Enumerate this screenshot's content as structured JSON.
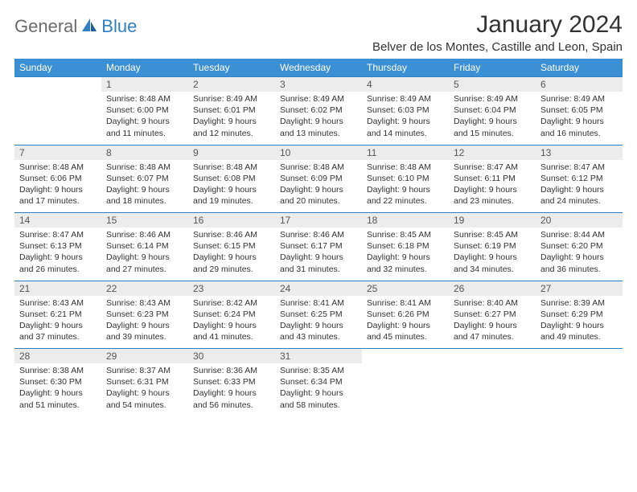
{
  "brand": {
    "general": "General",
    "blue": "Blue"
  },
  "title": "January 2024",
  "location": "Belver de los Montes, Castille and Leon, Spain",
  "colors": {
    "header_bg": "#3b8fd4",
    "header_text": "#ffffff",
    "daynum_bg": "#ececec",
    "border": "#2f7fc2",
    "body_text": "#333333",
    "logo_gray": "#6b6b6b",
    "logo_blue": "#2f7fc2"
  },
  "weekdays": [
    "Sunday",
    "Monday",
    "Tuesday",
    "Wednesday",
    "Thursday",
    "Friday",
    "Saturday"
  ],
  "weeks": [
    [
      null,
      {
        "n": "1",
        "sr": "Sunrise: 8:48 AM",
        "ss": "Sunset: 6:00 PM",
        "dl1": "Daylight: 9 hours",
        "dl2": "and 11 minutes."
      },
      {
        "n": "2",
        "sr": "Sunrise: 8:49 AM",
        "ss": "Sunset: 6:01 PM",
        "dl1": "Daylight: 9 hours",
        "dl2": "and 12 minutes."
      },
      {
        "n": "3",
        "sr": "Sunrise: 8:49 AM",
        "ss": "Sunset: 6:02 PM",
        "dl1": "Daylight: 9 hours",
        "dl2": "and 13 minutes."
      },
      {
        "n": "4",
        "sr": "Sunrise: 8:49 AM",
        "ss": "Sunset: 6:03 PM",
        "dl1": "Daylight: 9 hours",
        "dl2": "and 14 minutes."
      },
      {
        "n": "5",
        "sr": "Sunrise: 8:49 AM",
        "ss": "Sunset: 6:04 PM",
        "dl1": "Daylight: 9 hours",
        "dl2": "and 15 minutes."
      },
      {
        "n": "6",
        "sr": "Sunrise: 8:49 AM",
        "ss": "Sunset: 6:05 PM",
        "dl1": "Daylight: 9 hours",
        "dl2": "and 16 minutes."
      }
    ],
    [
      {
        "n": "7",
        "sr": "Sunrise: 8:48 AM",
        "ss": "Sunset: 6:06 PM",
        "dl1": "Daylight: 9 hours",
        "dl2": "and 17 minutes."
      },
      {
        "n": "8",
        "sr": "Sunrise: 8:48 AM",
        "ss": "Sunset: 6:07 PM",
        "dl1": "Daylight: 9 hours",
        "dl2": "and 18 minutes."
      },
      {
        "n": "9",
        "sr": "Sunrise: 8:48 AM",
        "ss": "Sunset: 6:08 PM",
        "dl1": "Daylight: 9 hours",
        "dl2": "and 19 minutes."
      },
      {
        "n": "10",
        "sr": "Sunrise: 8:48 AM",
        "ss": "Sunset: 6:09 PM",
        "dl1": "Daylight: 9 hours",
        "dl2": "and 20 minutes."
      },
      {
        "n": "11",
        "sr": "Sunrise: 8:48 AM",
        "ss": "Sunset: 6:10 PM",
        "dl1": "Daylight: 9 hours",
        "dl2": "and 22 minutes."
      },
      {
        "n": "12",
        "sr": "Sunrise: 8:47 AM",
        "ss": "Sunset: 6:11 PM",
        "dl1": "Daylight: 9 hours",
        "dl2": "and 23 minutes."
      },
      {
        "n": "13",
        "sr": "Sunrise: 8:47 AM",
        "ss": "Sunset: 6:12 PM",
        "dl1": "Daylight: 9 hours",
        "dl2": "and 24 minutes."
      }
    ],
    [
      {
        "n": "14",
        "sr": "Sunrise: 8:47 AM",
        "ss": "Sunset: 6:13 PM",
        "dl1": "Daylight: 9 hours",
        "dl2": "and 26 minutes."
      },
      {
        "n": "15",
        "sr": "Sunrise: 8:46 AM",
        "ss": "Sunset: 6:14 PM",
        "dl1": "Daylight: 9 hours",
        "dl2": "and 27 minutes."
      },
      {
        "n": "16",
        "sr": "Sunrise: 8:46 AM",
        "ss": "Sunset: 6:15 PM",
        "dl1": "Daylight: 9 hours",
        "dl2": "and 29 minutes."
      },
      {
        "n": "17",
        "sr": "Sunrise: 8:46 AM",
        "ss": "Sunset: 6:17 PM",
        "dl1": "Daylight: 9 hours",
        "dl2": "and 31 minutes."
      },
      {
        "n": "18",
        "sr": "Sunrise: 8:45 AM",
        "ss": "Sunset: 6:18 PM",
        "dl1": "Daylight: 9 hours",
        "dl2": "and 32 minutes."
      },
      {
        "n": "19",
        "sr": "Sunrise: 8:45 AM",
        "ss": "Sunset: 6:19 PM",
        "dl1": "Daylight: 9 hours",
        "dl2": "and 34 minutes."
      },
      {
        "n": "20",
        "sr": "Sunrise: 8:44 AM",
        "ss": "Sunset: 6:20 PM",
        "dl1": "Daylight: 9 hours",
        "dl2": "and 36 minutes."
      }
    ],
    [
      {
        "n": "21",
        "sr": "Sunrise: 8:43 AM",
        "ss": "Sunset: 6:21 PM",
        "dl1": "Daylight: 9 hours",
        "dl2": "and 37 minutes."
      },
      {
        "n": "22",
        "sr": "Sunrise: 8:43 AM",
        "ss": "Sunset: 6:23 PM",
        "dl1": "Daylight: 9 hours",
        "dl2": "and 39 minutes."
      },
      {
        "n": "23",
        "sr": "Sunrise: 8:42 AM",
        "ss": "Sunset: 6:24 PM",
        "dl1": "Daylight: 9 hours",
        "dl2": "and 41 minutes."
      },
      {
        "n": "24",
        "sr": "Sunrise: 8:41 AM",
        "ss": "Sunset: 6:25 PM",
        "dl1": "Daylight: 9 hours",
        "dl2": "and 43 minutes."
      },
      {
        "n": "25",
        "sr": "Sunrise: 8:41 AM",
        "ss": "Sunset: 6:26 PM",
        "dl1": "Daylight: 9 hours",
        "dl2": "and 45 minutes."
      },
      {
        "n": "26",
        "sr": "Sunrise: 8:40 AM",
        "ss": "Sunset: 6:27 PM",
        "dl1": "Daylight: 9 hours",
        "dl2": "and 47 minutes."
      },
      {
        "n": "27",
        "sr": "Sunrise: 8:39 AM",
        "ss": "Sunset: 6:29 PM",
        "dl1": "Daylight: 9 hours",
        "dl2": "and 49 minutes."
      }
    ],
    [
      {
        "n": "28",
        "sr": "Sunrise: 8:38 AM",
        "ss": "Sunset: 6:30 PM",
        "dl1": "Daylight: 9 hours",
        "dl2": "and 51 minutes."
      },
      {
        "n": "29",
        "sr": "Sunrise: 8:37 AM",
        "ss": "Sunset: 6:31 PM",
        "dl1": "Daylight: 9 hours",
        "dl2": "and 54 minutes."
      },
      {
        "n": "30",
        "sr": "Sunrise: 8:36 AM",
        "ss": "Sunset: 6:33 PM",
        "dl1": "Daylight: 9 hours",
        "dl2": "and 56 minutes."
      },
      {
        "n": "31",
        "sr": "Sunrise: 8:35 AM",
        "ss": "Sunset: 6:34 PM",
        "dl1": "Daylight: 9 hours",
        "dl2": "and 58 minutes."
      },
      null,
      null,
      null
    ]
  ]
}
